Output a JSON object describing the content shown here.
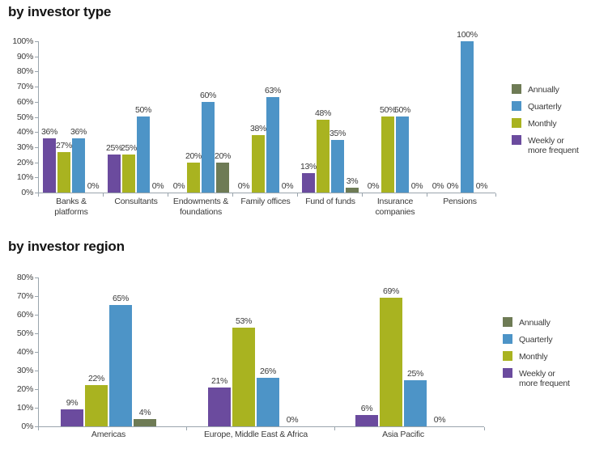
{
  "page": {
    "background": "#ffffff"
  },
  "chart_data": [
    {
      "type": "bar",
      "title": "by investor type",
      "xlabel": "",
      "ylabel": "",
      "grid": false,
      "legend_position": "right",
      "value_labels": true,
      "y_axis": {
        "min": 0,
        "max": 100,
        "step": 10,
        "suffix": "%"
      },
      "categories": [
        "Banks &\nplatforms",
        "Consultants",
        "Endowments &\nfoundations",
        "Family offices",
        "Fund of funds",
        "Insurance\ncompanies",
        "Pensions"
      ],
      "series": [
        {
          "name": "Weekly or more frequent",
          "color": "#6B4B9E",
          "values": [
            36,
            25,
            0,
            0,
            13,
            0,
            0
          ]
        },
        {
          "name": "Monthly",
          "color": "#A9B320",
          "values": [
            27,
            25,
            20,
            38,
            48,
            50,
            0
          ]
        },
        {
          "name": "Quarterly",
          "color": "#4D94C7",
          "values": [
            36,
            50,
            60,
            63,
            35,
            50,
            100
          ]
        },
        {
          "name": "Annually",
          "color": "#6E7B55",
          "values": [
            0,
            0,
            20,
            0,
            3,
            0,
            0
          ]
        }
      ],
      "legend": [
        {
          "label": "Annually",
          "color": "#6E7B55"
        },
        {
          "label": "Quarterly",
          "color": "#4D94C7"
        },
        {
          "label": "Monthly",
          "color": "#A9B320"
        },
        {
          "label": "Weekly or\nmore frequent",
          "color": "#6B4B9E"
        }
      ]
    },
    {
      "type": "bar",
      "title": "by investor region",
      "xlabel": "",
      "ylabel": "",
      "grid": false,
      "legend_position": "right",
      "value_labels": true,
      "y_axis": {
        "min": 0,
        "max": 80,
        "step": 10,
        "suffix": "%"
      },
      "categories": [
        "Americas",
        "Europe, Middle East & Africa",
        "Asia Pacific"
      ],
      "series": [
        {
          "name": "Weekly or more frequent",
          "color": "#6B4B9E",
          "values": [
            9,
            21,
            6
          ]
        },
        {
          "name": "Monthly",
          "color": "#A9B320",
          "values": [
            22,
            53,
            69
          ]
        },
        {
          "name": "Quarterly",
          "color": "#4D94C7",
          "values": [
            65,
            26,
            25
          ]
        },
        {
          "name": "Annually",
          "color": "#6E7B55",
          "values": [
            4,
            0,
            0
          ]
        }
      ],
      "legend": [
        {
          "label": "Annually",
          "color": "#6E7B55"
        },
        {
          "label": "Quarterly",
          "color": "#4D94C7"
        },
        {
          "label": "Monthly",
          "color": "#A9B320"
        },
        {
          "label": "Weekly or\nmore frequent",
          "color": "#6B4B9E"
        }
      ]
    }
  ]
}
